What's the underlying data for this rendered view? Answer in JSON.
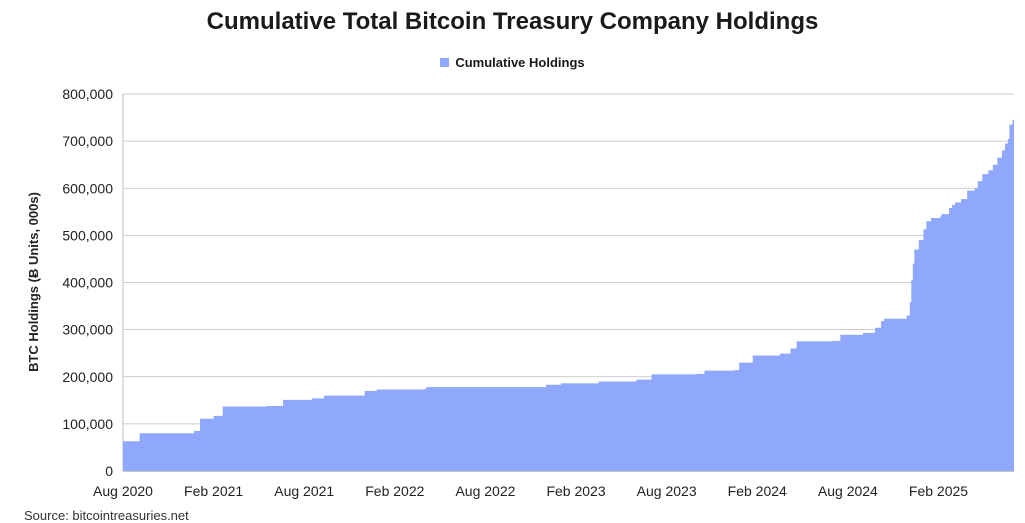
{
  "chart_data": {
    "type": "area",
    "title": "Cumulative Total Bitcoin Treasury Company Holdings",
    "legend": {
      "label": "Cumulative Holdings",
      "color": "#8fa8fb",
      "position": "top-center"
    },
    "ylabel": "BTC Holdings (Ƀ Units, 000s)",
    "xlabel": "",
    "ylim": [
      0,
      800000
    ],
    "y_ticks": [
      0,
      100000,
      200000,
      300000,
      400000,
      500000,
      600000,
      700000,
      800000
    ],
    "y_tick_labels": [
      "0",
      "100,000",
      "200,000",
      "300,000",
      "400,000",
      "500,000",
      "600,000",
      "700,000",
      "800,000"
    ],
    "x_tick_labels": [
      "Aug 2020",
      "Feb 2021",
      "Aug 2021",
      "Feb 2022",
      "Aug 2022",
      "Feb 2023",
      "Aug 2023",
      "Feb 2024",
      "Aug 2024",
      "Feb 2025"
    ],
    "x_range_months": [
      0,
      59
    ],
    "grid": true,
    "series": [
      {
        "name": "Cumulative Holdings",
        "color": "#8fa8fb",
        "points": [
          [
            0,
            63000
          ],
          [
            1,
            63000
          ],
          [
            1.1,
            80000
          ],
          [
            4,
            80000
          ],
          [
            4.7,
            85000
          ],
          [
            5.1,
            111000
          ],
          [
            6,
            117000
          ],
          [
            6.6,
            137000
          ],
          [
            9.5,
            138000
          ],
          [
            10.6,
            151000
          ],
          [
            12.5,
            154000
          ],
          [
            13.3,
            160000
          ],
          [
            15.5,
            160000
          ],
          [
            16,
            170000
          ],
          [
            16.8,
            173000
          ],
          [
            20,
            175000
          ],
          [
            20.1,
            178000
          ],
          [
            28,
            183000
          ],
          [
            29,
            186000
          ],
          [
            31.5,
            190000
          ],
          [
            34,
            194000
          ],
          [
            35,
            205000
          ],
          [
            38,
            206000
          ],
          [
            38.5,
            213000
          ],
          [
            40.5,
            214000
          ],
          [
            40.8,
            230000
          ],
          [
            41.5,
            230000
          ],
          [
            41.7,
            245000
          ],
          [
            43.5,
            249000
          ],
          [
            44.2,
            260000
          ],
          [
            44.6,
            275000
          ],
          [
            47,
            276000
          ],
          [
            47.5,
            289000
          ],
          [
            48.8,
            289000
          ],
          [
            49,
            293000
          ],
          [
            49.8,
            304000
          ],
          [
            50.2,
            318000
          ],
          [
            50.4,
            323000
          ],
          [
            51.8,
            323000
          ],
          [
            51.9,
            330000
          ],
          [
            52.1,
            358000
          ],
          [
            52.2,
            405000
          ],
          [
            52.3,
            440000
          ],
          [
            52.4,
            470000
          ],
          [
            52.7,
            490000
          ],
          [
            53,
            513000
          ],
          [
            53.2,
            530000
          ],
          [
            53.5,
            537000
          ],
          [
            54.1,
            540000
          ],
          [
            54.2,
            545000
          ],
          [
            54.7,
            558000
          ],
          [
            54.9,
            565000
          ],
          [
            55.1,
            570000
          ],
          [
            55.5,
            577000
          ],
          [
            55.9,
            595000
          ],
          [
            56.4,
            600000
          ],
          [
            56.6,
            615000
          ],
          [
            56.9,
            630000
          ],
          [
            57.3,
            638000
          ],
          [
            57.6,
            650000
          ],
          [
            57.9,
            665000
          ],
          [
            58.2,
            680000
          ],
          [
            58.4,
            695000
          ],
          [
            58.6,
            705000
          ],
          [
            58.7,
            735000
          ],
          [
            58.9,
            745000
          ],
          [
            59,
            750000
          ]
        ]
      }
    ]
  },
  "source": "Source: bitcointreasuries.net"
}
